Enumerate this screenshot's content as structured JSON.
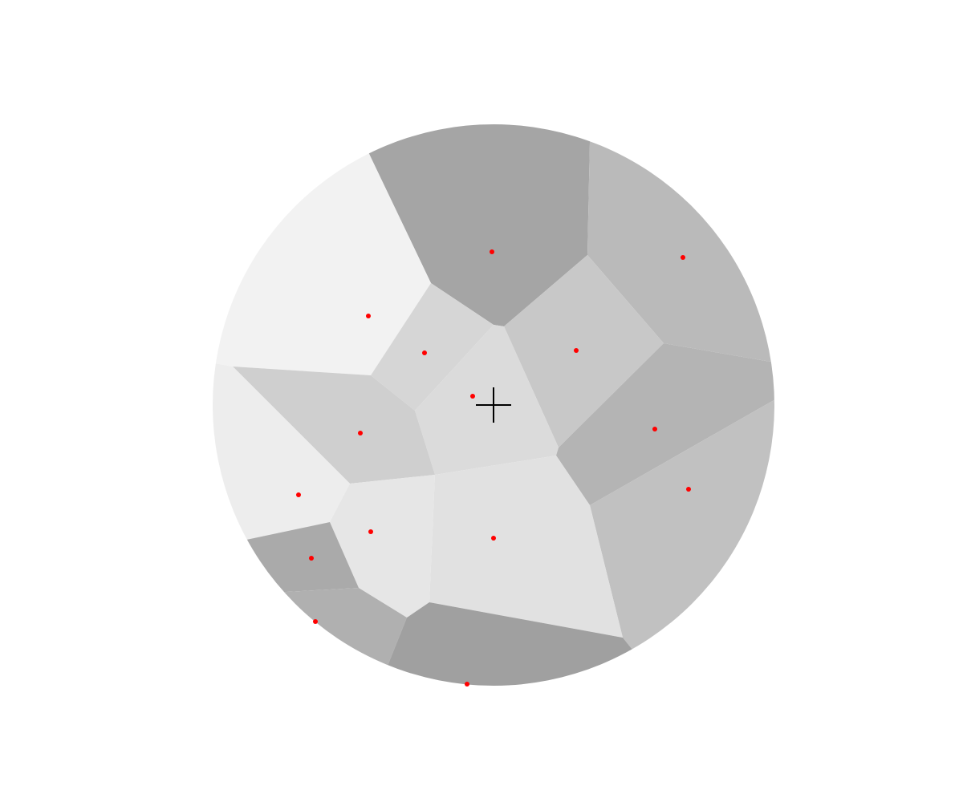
{
  "diagram": {
    "type": "voronoi",
    "colors": {
      "background": "#ffffff",
      "seed": "#ff0000",
      "crosshair": "#000000"
    },
    "cells": [
      {
        "id": "cell-top",
        "fill": "#a5a5a5"
      },
      {
        "id": "cell-top-right",
        "fill": "#bababa"
      },
      {
        "id": "cell-upper-left",
        "fill": "#f2f2f2"
      },
      {
        "id": "cell-small-upper-center",
        "fill": "#d6d6d6"
      },
      {
        "id": "cell-right-center",
        "fill": "#c8c8c8"
      },
      {
        "id": "cell-center",
        "fill": "#dbdbdb"
      },
      {
        "id": "cell-left-center",
        "fill": "#cfcfcf"
      },
      {
        "id": "cell-right",
        "fill": "#b4b4b4"
      },
      {
        "id": "cell-left",
        "fill": "#ededed"
      },
      {
        "id": "cell-lower-right",
        "fill": "#c1c1c1"
      },
      {
        "id": "cell-lower-center",
        "fill": "#e1e1e1"
      },
      {
        "id": "cell-lower-left-center",
        "fill": "#e6e6e6"
      },
      {
        "id": "cell-lower-left",
        "fill": "#aaaaaa"
      },
      {
        "id": "cell-bottom-left",
        "fill": "#b0b0b0"
      },
      {
        "id": "cell-bottom",
        "fill": "#a0a0a0"
      }
    ]
  }
}
